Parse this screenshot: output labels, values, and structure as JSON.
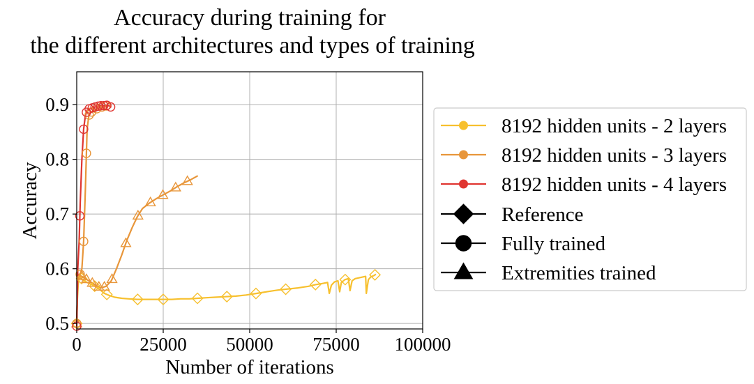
{
  "chart_data": {
    "type": "line",
    "title": [
      "Accuracy during training for",
      "the different architectures and types of training"
    ],
    "xlabel": "Number of iterations",
    "ylabel": "Accuracy",
    "xlim": [
      0,
      100000
    ],
    "ylim": [
      0.49,
      0.96
    ],
    "xticks": [
      0,
      25000,
      50000,
      75000,
      100000
    ],
    "xtick_labels": [
      "0",
      "25000",
      "50000",
      "75000",
      "100000"
    ],
    "yticks": [
      0.5,
      0.6,
      0.7,
      0.8,
      0.9
    ],
    "ytick_labels": [
      "0.5",
      "0.6",
      "0.7",
      "0.8",
      "0.9"
    ],
    "grid": true,
    "legend_position": "right, outside plot",
    "legend": {
      "colors": [
        {
          "label": "8192 hidden units - 2 layers",
          "color": "#f7c02e"
        },
        {
          "label": "8192 hidden units - 3 layers",
          "color": "#e8963a"
        },
        {
          "label": "8192 hidden units - 4 layers",
          "color": "#e03531"
        }
      ],
      "markers": [
        {
          "label": "Reference",
          "marker": "diamond"
        },
        {
          "label": "Fully trained",
          "marker": "circle"
        },
        {
          "label": "Extremities trained",
          "marker": "triangle"
        }
      ]
    },
    "series": [
      {
        "architecture": "8192 hidden units - 2 layers",
        "training": "Reference",
        "color": "#f7c02e",
        "marker": "diamond",
        "x": [
          0,
          200,
          400,
          600,
          900,
          1300,
          1700,
          2200,
          3000,
          4000,
          5000,
          6500,
          8000,
          9500,
          11000,
          13000,
          15000,
          17500,
          20000,
          22500,
          25000,
          27500,
          30000,
          32500,
          35000,
          37500,
          40000,
          43000,
          46000,
          49000,
          52000,
          55000,
          58000,
          61000,
          64000,
          67000,
          69000,
          71000,
          72500,
          73000,
          73600,
          74500,
          75500,
          76000,
          76500,
          77500,
          78500,
          79000,
          79600,
          80500,
          82000,
          83500,
          83700,
          84300,
          85000,
          86000,
          86500
        ],
        "y": [
          0.5,
          0.545,
          0.57,
          0.58,
          0.585,
          0.583,
          0.58,
          0.578,
          0.575,
          0.572,
          0.569,
          0.563,
          0.555,
          0.551,
          0.548,
          0.546,
          0.545,
          0.544,
          0.544,
          0.544,
          0.544,
          0.544,
          0.545,
          0.545,
          0.546,
          0.547,
          0.548,
          0.549,
          0.55,
          0.552,
          0.555,
          0.558,
          0.561,
          0.563,
          0.565,
          0.568,
          0.571,
          0.573,
          0.575,
          0.555,
          0.57,
          0.576,
          0.578,
          0.558,
          0.575,
          0.58,
          0.582,
          0.56,
          0.578,
          0.582,
          0.584,
          0.586,
          0.555,
          0.58,
          0.585,
          0.588,
          0.59
        ]
      },
      {
        "architecture": "8192 hidden units - 3 layers",
        "training": "Fully trained",
        "color": "#e8963a",
        "marker": "circle",
        "x": [
          0,
          300,
          700,
          1000,
          1500,
          2000,
          2500,
          3000,
          3500,
          4000,
          5000,
          6000,
          7000,
          8000,
          9000
        ],
        "y": [
          0.5,
          0.585,
          0.59,
          0.59,
          0.6,
          0.65,
          0.745,
          0.855,
          0.88,
          0.885,
          0.89,
          0.893,
          0.895,
          0.897,
          0.898
        ]
      },
      {
        "architecture": "8192 hidden units - 3 layers",
        "training": "Extremities trained",
        "color": "#e8963a",
        "marker": "triangle",
        "x": [
          0,
          300,
          800,
          1500,
          2500,
          3500,
          4500,
          5500,
          7000,
          8500,
          10000,
          11500,
          13000,
          14500,
          16000,
          17500,
          19000,
          21000,
          23000,
          25000,
          27000,
          29000,
          31000,
          33000,
          35000
        ],
        "y": [
          0.5,
          0.585,
          0.588,
          0.586,
          0.582,
          0.578,
          0.574,
          0.57,
          0.565,
          0.568,
          0.578,
          0.6,
          0.625,
          0.652,
          0.675,
          0.695,
          0.71,
          0.72,
          0.728,
          0.735,
          0.742,
          0.75,
          0.757,
          0.763,
          0.77
        ]
      },
      {
        "architecture": "8192 hidden units - 4 layers",
        "training": "Fully trained",
        "color": "#e03531",
        "marker": "circle",
        "x": [
          0,
          300,
          700,
          1000,
          1500,
          2000,
          2500,
          3000,
          3500,
          4000,
          5000,
          6000,
          7000,
          8000,
          9000,
          10000
        ],
        "y": [
          0.495,
          0.6,
          0.65,
          0.72,
          0.8,
          0.855,
          0.88,
          0.89,
          0.892,
          0.893,
          0.895,
          0.897,
          0.898,
          0.898,
          0.899,
          0.895
        ]
      }
    ],
    "marker_x": [
      [
        0,
        1400,
        5200,
        8700,
        17600,
        25000,
        34900,
        43400,
        51800,
        60400,
        69000,
        77600,
        86200
      ],
      [
        0,
        1000,
        2000,
        2800,
        3600,
        4300,
        5800,
        7300,
        8500
      ],
      [
        0,
        1500,
        2800,
        4500,
        6400,
        8000,
        10200,
        14200,
        17700,
        21300,
        24900,
        28600,
        32000
      ],
      [
        0,
        900,
        2000,
        2800,
        3600,
        4500,
        5300,
        6200,
        7000,
        7800,
        8700,
        9800
      ]
    ]
  }
}
